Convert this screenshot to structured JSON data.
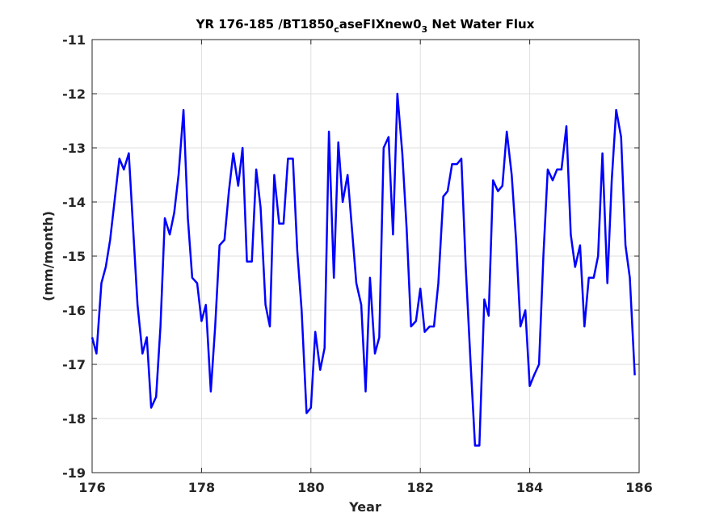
{
  "chart_data": {
    "type": "line",
    "title": {
      "main": "YR 176-185 /BT1850",
      "sub1": "c",
      "mid": "aseFIXnew0",
      "sub2": "3",
      "tail": " Net Water Flux"
    },
    "xlabel": "Year",
    "ylabel": "(mm/month)",
    "xlim": [
      176,
      186
    ],
    "ylim": [
      -19,
      -11
    ],
    "xticks": [
      176,
      178,
      180,
      182,
      184,
      186
    ],
    "yticks": [
      -11,
      -12,
      -13,
      -14,
      -15,
      -16,
      -17,
      -18,
      -19
    ],
    "grid": true,
    "line_color": "#0000ff",
    "series": [
      {
        "x": [
          176.0,
          176.08,
          176.17,
          176.25,
          176.33,
          176.42,
          176.5,
          176.58,
          176.67,
          176.75,
          176.83,
          176.92,
          177.0,
          177.08,
          177.17,
          177.25,
          177.33,
          177.42,
          177.5,
          177.58,
          177.67,
          177.75,
          177.83,
          177.92,
          178.0,
          178.08,
          178.17,
          178.25,
          178.33,
          178.42,
          178.5,
          178.58,
          178.67,
          178.75,
          178.83,
          178.92,
          179.0,
          179.08,
          179.17,
          179.25,
          179.33,
          179.42,
          179.5,
          179.58,
          179.67,
          179.75,
          179.83,
          179.92,
          180.0,
          180.08,
          180.17,
          180.25,
          180.33,
          180.42,
          180.5,
          180.58,
          180.67,
          180.75,
          180.83,
          180.92,
          181.0,
          181.08,
          181.17,
          181.25,
          181.33,
          181.42,
          181.5,
          181.58,
          181.67,
          181.75,
          181.83,
          181.92,
          182.0,
          182.08,
          182.17,
          182.25,
          182.33,
          182.42,
          182.5,
          182.58,
          182.67,
          182.75,
          182.83,
          182.92,
          183.0,
          183.08,
          183.17,
          183.25,
          183.33,
          183.42,
          183.5,
          183.58,
          183.67,
          183.75,
          183.83,
          183.92,
          184.0,
          184.08,
          184.17,
          184.25,
          184.33,
          184.42,
          184.5,
          184.58,
          184.67,
          184.75,
          184.83,
          184.92,
          185.0,
          185.08,
          185.17,
          185.25,
          185.33,
          185.42,
          185.5,
          185.58,
          185.67,
          185.75,
          185.83,
          185.92
        ],
        "y": [
          -16.5,
          -16.8,
          -15.5,
          -15.2,
          -14.7,
          -13.9,
          -13.2,
          -13.4,
          -13.1,
          -14.5,
          -15.9,
          -16.8,
          -16.5,
          -17.8,
          -17.6,
          -16.3,
          -14.3,
          -14.6,
          -14.2,
          -13.5,
          -12.3,
          -14.3,
          -15.4,
          -15.5,
          -16.2,
          -15.9,
          -17.5,
          -16.3,
          -14.8,
          -14.7,
          -13.8,
          -13.1,
          -13.7,
          -13.0,
          -15.1,
          -15.1,
          -13.4,
          -14.1,
          -15.9,
          -16.3,
          -13.5,
          -14.4,
          -14.4,
          -13.2,
          -13.2,
          -14.9,
          -16.0,
          -17.9,
          -17.8,
          -16.4,
          -17.1,
          -16.7,
          -12.7,
          -15.4,
          -12.9,
          -14.0,
          -13.5,
          -14.5,
          -15.5,
          -15.9,
          -17.5,
          -15.4,
          -16.8,
          -16.5,
          -13.0,
          -12.8,
          -14.6,
          -12.0,
          -13.1,
          -14.5,
          -16.3,
          -16.2,
          -15.6,
          -16.4,
          -16.3,
          -16.3,
          -15.5,
          -13.9,
          -13.8,
          -13.3,
          -13.3,
          -13.2,
          -15.2,
          -17.0,
          -18.5,
          -18.5,
          -15.8,
          -16.1,
          -13.6,
          -13.8,
          -13.7,
          -12.7,
          -13.5,
          -14.7,
          -16.3,
          -16.0,
          -17.4,
          -17.2,
          -17.0,
          -15.0,
          -13.4,
          -13.6,
          -13.4,
          -13.4,
          -12.6,
          -14.6,
          -15.2,
          -14.8,
          -16.3,
          -15.4,
          -15.4,
          -15.0,
          -13.1,
          -15.5,
          -13.6,
          -12.3,
          -12.8,
          -14.8,
          -15.4,
          -17.2
        ]
      }
    ]
  }
}
